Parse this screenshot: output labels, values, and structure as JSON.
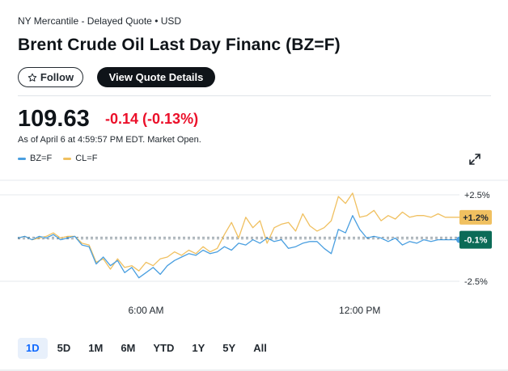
{
  "header": {
    "exchange_line": "NY Mercantile - Delayed Quote • USD",
    "title": "Brent Crude Oil Last Day Financ (BZ=F)"
  },
  "actions": {
    "follow_label": "Follow",
    "follow_icon": "star-outline-icon",
    "view_quote_label": "View Quote Details"
  },
  "quote": {
    "price": "109.63",
    "change": "-0.14",
    "change_percent": "(-0.13%)",
    "as_of": "As of April 6 at 4:59:57 PM EDT. Market Open."
  },
  "colors": {
    "negative": "#eb0f29",
    "bz_series": "#4a9fe0",
    "cl_series": "#f0c060",
    "bz_tag_bg": "#0b6b57",
    "cl_tag_bg": "#f0c060"
  },
  "legend": {
    "bz_label": "BZ=F",
    "cl_label": "CL=F"
  },
  "chart_data": {
    "type": "line",
    "x_ticks": [
      "6:00 AM",
      "12:00 PM"
    ],
    "y_ticks": [
      "+2.5%",
      "-2.5%"
    ],
    "ylim": [
      -2.5,
      2.5
    ],
    "baseline": 0,
    "series": [
      {
        "name": "BZ=F",
        "end_label": "-0.1%",
        "values": [
          0.0,
          0.1,
          -0.1,
          0.1,
          0.0,
          0.2,
          -0.1,
          0.0,
          0.1,
          -0.4,
          -0.5,
          -1.5,
          -1.1,
          -1.6,
          -1.3,
          -2.0,
          -1.7,
          -2.3,
          -2.0,
          -1.7,
          -2.1,
          -1.6,
          -1.3,
          -1.1,
          -0.9,
          -1.0,
          -0.7,
          -0.9,
          -0.8,
          -0.5,
          -0.7,
          -0.3,
          -0.4,
          -0.1,
          -0.3,
          0.0,
          -0.2,
          -0.1,
          -0.6,
          -0.5,
          -0.3,
          -0.2,
          -0.2,
          -0.6,
          -0.9,
          0.5,
          0.3,
          1.3,
          0.5,
          0.0,
          0.1,
          0.0,
          -0.2,
          0.0,
          -0.4,
          -0.2,
          -0.3,
          -0.1,
          -0.2,
          -0.1,
          -0.1,
          -0.1,
          -0.1
        ]
      },
      {
        "name": "CL=F",
        "end_label": "+1.2%",
        "values": [
          0.0,
          0.1,
          -0.1,
          0.0,
          0.1,
          0.3,
          0.0,
          0.1,
          0.1,
          -0.3,
          -0.4,
          -1.4,
          -1.2,
          -1.8,
          -1.2,
          -1.7,
          -1.6,
          -1.9,
          -1.4,
          -1.6,
          -1.2,
          -1.1,
          -0.8,
          -1.0,
          -0.7,
          -0.9,
          -0.5,
          -0.8,
          -0.6,
          0.2,
          0.9,
          0.0,
          1.2,
          0.6,
          1.0,
          -0.3,
          0.6,
          0.8,
          0.9,
          0.4,
          1.4,
          0.7,
          0.4,
          0.6,
          1.0,
          2.4,
          2.0,
          2.6,
          1.2,
          1.3,
          1.6,
          1.0,
          1.3,
          1.1,
          1.5,
          1.2,
          1.3,
          1.3,
          1.2,
          1.4,
          1.2,
          1.2,
          1.2
        ]
      }
    ],
    "x_tick_positions_index": [
      18,
      48
    ],
    "grid": true,
    "legend_placement": "top-left"
  },
  "ranges": [
    "1D",
    "5D",
    "1M",
    "6M",
    "YTD",
    "1Y",
    "5Y",
    "All"
  ],
  "active_range": "1D"
}
